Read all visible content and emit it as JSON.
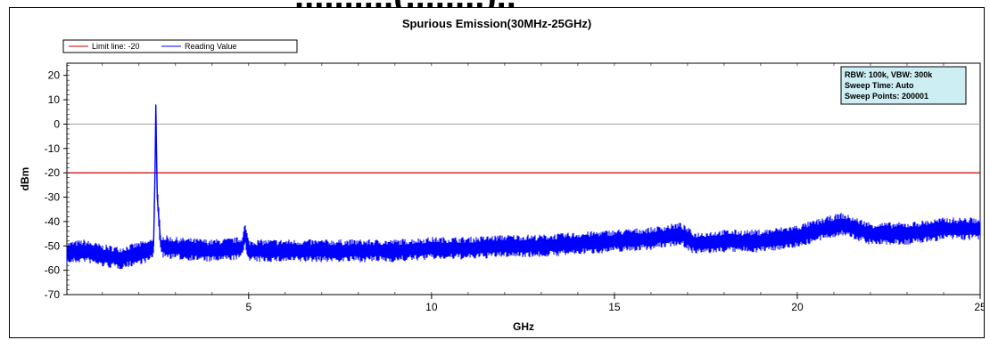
{
  "page": {
    "cut_heading": "..........(........).."
  },
  "colors": {
    "trace": "#0000ff",
    "limit_line": "#cc0000",
    "zero_line": "#aaaaaa",
    "info_box_bg": "#cdeef3"
  },
  "chart_data": {
    "type": "line",
    "title": "Spurious Emission(30MHz-25GHz)",
    "xlabel": "GHz",
    "ylabel": "dBm",
    "xlim": [
      0.03,
      25
    ],
    "ylim": [
      -70,
      25
    ],
    "x_ticks": [
      5,
      10,
      15,
      20,
      25
    ],
    "y_ticks": [
      20,
      10,
      0,
      -10,
      -20,
      -30,
      -40,
      -50,
      -60,
      -70
    ],
    "grid": false,
    "reference_lines": [
      {
        "name": "Limit line: -20",
        "y": -20
      },
      {
        "y": 0
      }
    ],
    "legend": {
      "placement": "top-left",
      "entries": [
        "Limit line: -20",
        "Reading Value"
      ]
    },
    "info_box": {
      "placement": "top-right",
      "lines": [
        "RBW: 100k, VBW: 300k",
        "Sweep Time: Auto",
        "Sweep Points: 200001"
      ]
    },
    "series": [
      {
        "name": "Reading Value",
        "x": [
          0.03,
          0.5,
          1.0,
          1.5,
          2.0,
          2.3,
          2.4,
          2.44,
          2.46,
          2.5,
          2.6,
          3.0,
          4.0,
          4.8,
          4.9,
          5.0,
          6.0,
          7.0,
          8.0,
          9.0,
          10.0,
          11.0,
          12.0,
          13.0,
          14.0,
          15.0,
          16.0,
          16.8,
          17.2,
          18.0,
          19.0,
          20.0,
          21.2,
          22.0,
          23.0,
          24.0,
          25.0
        ],
        "y": [
          -53,
          -52,
          -54,
          -55,
          -53,
          -52,
          -50,
          -20,
          8,
          -30,
          -50,
          -51,
          -52,
          -51,
          -45,
          -52,
          -52,
          -52,
          -52,
          -52,
          -51,
          -51,
          -50,
          -50,
          -49,
          -48,
          -47,
          -45,
          -49,
          -48,
          -48,
          -46,
          -41,
          -45,
          -45,
          -43,
          -43
        ]
      }
    ]
  }
}
